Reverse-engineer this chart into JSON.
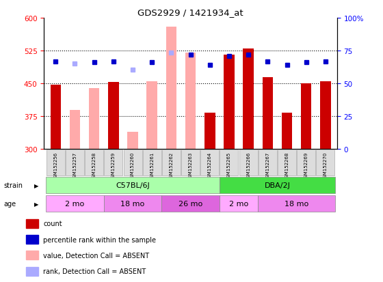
{
  "title": "GDS2929 / 1421934_at",
  "samples": [
    "GSM152256",
    "GSM152257",
    "GSM152258",
    "GSM152259",
    "GSM152260",
    "GSM152261",
    "GSM152262",
    "GSM152263",
    "GSM152264",
    "GSM152265",
    "GSM152266",
    "GSM152267",
    "GSM152268",
    "GSM152269",
    "GSM152270"
  ],
  "count_values": [
    447,
    null,
    null,
    453,
    null,
    null,
    null,
    null,
    383,
    515,
    530,
    465,
    383,
    450,
    455
  ],
  "absent_bar_values": [
    null,
    390,
    440,
    null,
    340,
    455,
    580,
    520,
    null,
    null,
    null,
    null,
    null,
    null,
    null
  ],
  "rank_present": [
    500,
    null,
    498,
    500,
    null,
    498,
    null,
    515,
    493,
    512,
    515,
    500,
    493,
    498,
    500
  ],
  "rank_absent": [
    null,
    495,
    null,
    null,
    482,
    null,
    520,
    null,
    null,
    null,
    null,
    null,
    null,
    null,
    null
  ],
  "ylim": [
    300,
    600
  ],
  "y2lim": [
    0,
    100
  ],
  "yticks": [
    300,
    375,
    450,
    525,
    600
  ],
  "y2ticks": [
    0,
    25,
    50,
    75,
    100
  ],
  "dotted_lines": [
    375,
    450,
    525
  ],
  "bar_color_present": "#cc0000",
  "bar_color_absent": "#ffaaaa",
  "dot_color_present": "#0000cc",
  "dot_color_absent": "#aaaaff",
  "strain_labels": [
    {
      "label": "C57BL/6J",
      "start": 0,
      "end": 8
    },
    {
      "label": "DBA/2J",
      "start": 9,
      "end": 14
    }
  ],
  "age_groups": [
    {
      "label": "2 mo",
      "start": 0,
      "end": 2,
      "color": "#ffaaff"
    },
    {
      "label": "18 mo",
      "start": 3,
      "end": 5,
      "color": "#ee88ee"
    },
    {
      "label": "26 mo",
      "start": 6,
      "end": 8,
      "color": "#dd66dd"
    },
    {
      "label": "2 mo",
      "start": 9,
      "end": 10,
      "color": "#ffaaff"
    },
    {
      "label": "18 mo",
      "start": 11,
      "end": 14,
      "color": "#ee88ee"
    }
  ],
  "strain_color_1": "#aaffaa",
  "strain_color_2": "#44dd44",
  "legend_items": [
    {
      "label": "count",
      "color": "#cc0000"
    },
    {
      "label": "percentile rank within the sample",
      "color": "#0000cc"
    },
    {
      "label": "value, Detection Call = ABSENT",
      "color": "#ffaaaa"
    },
    {
      "label": "rank, Detection Call = ABSENT",
      "color": "#aaaaff"
    }
  ]
}
